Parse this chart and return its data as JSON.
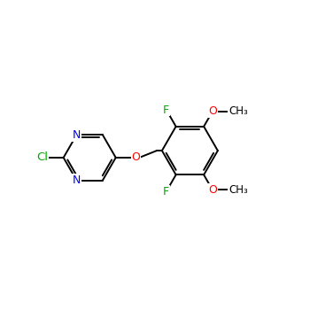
{
  "background_color": "#ffffff",
  "bond_color": "#000000",
  "atom_colors": {
    "N": "#0000ff",
    "Cl": "#00aa00",
    "O": "#ff0000",
    "F": "#00aa00",
    "C": "#000000"
  },
  "font_size": 9,
  "figsize": [
    3.5,
    3.5
  ],
  "dpi": 100,
  "bond_lw": 1.4,
  "double_sep": 2.8
}
